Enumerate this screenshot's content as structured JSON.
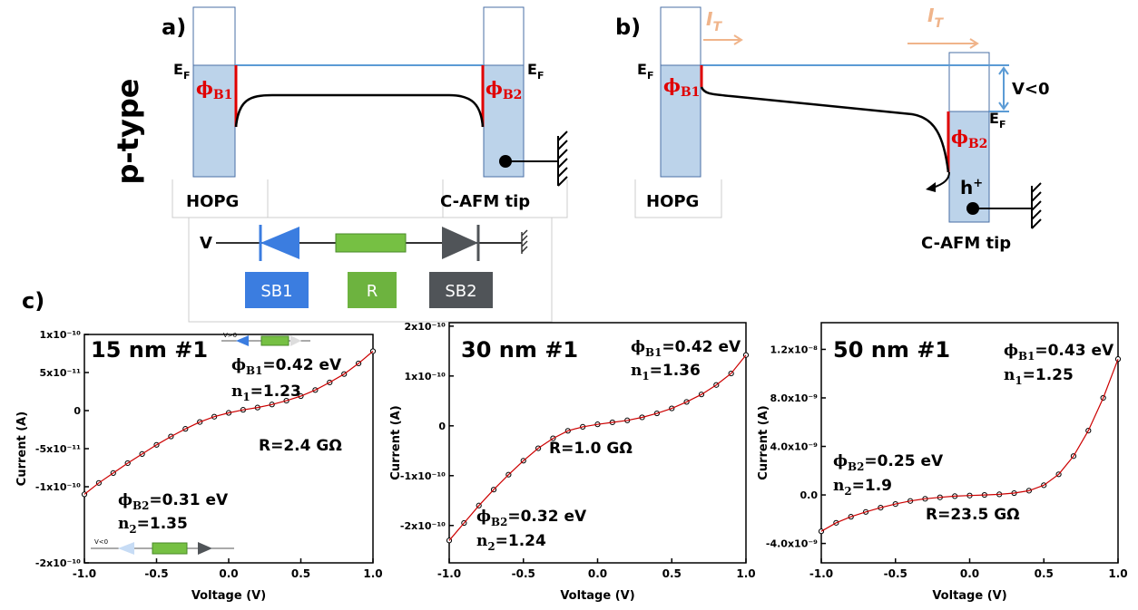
{
  "figure_side_label": "p-type",
  "diagram_a": {
    "label": "a)",
    "ef_left": {
      "main": "E",
      "sub": "F"
    },
    "ef_right": {
      "main": "E",
      "sub": "F"
    },
    "phi_left": {
      "main": "ϕ",
      "sub": "B1"
    },
    "phi_right": {
      "main": "ϕ",
      "sub": "B2"
    },
    "left_electrode": "HOPG",
    "right_electrode": "C-AFM tip"
  },
  "circuit": {
    "source": "V",
    "sb1": "SB1",
    "r": "R",
    "sb2": "SB2"
  },
  "diagram_b": {
    "label": "b)",
    "current_left": {
      "main": "I",
      "sub": "T"
    },
    "current_right": {
      "main": "I",
      "sub": "T"
    },
    "ef_left": {
      "main": "E",
      "sub": "F"
    },
    "ef_right": {
      "main": "E",
      "sub": "F"
    },
    "bias": "V<0",
    "phi_left": {
      "main": "ϕ",
      "sub": "B1"
    },
    "phi_right": {
      "main": "ϕ",
      "sub": "B2"
    },
    "carrier": {
      "main": "h",
      "sup": "+"
    },
    "left_electrode": "HOPG",
    "right_electrode": "C-AFM tip"
  },
  "panel_c_label": "c)",
  "chart_data": [
    {
      "type": "scatter",
      "title": "15 nm #1",
      "x_label": "Voltage (V)",
      "y_label": "Current (A)",
      "color": "#000000",
      "fit_color": "#cc0000",
      "x": [
        -1,
        -0.9,
        -0.8,
        -0.7,
        -0.6,
        -0.5,
        -0.4,
        -0.3,
        -0.2,
        -0.1,
        0,
        0.1,
        0.2,
        0.3,
        0.4,
        0.5,
        0.6,
        0.7,
        0.8,
        0.9,
        1
      ],
      "values": [
        -1.1e-10,
        -9.5e-11,
        -8.2e-11,
        -6.9e-11,
        -5.7e-11,
        -4.5e-11,
        -3.4e-11,
        -2.4e-11,
        -1.5e-11,
        -8e-12,
        -3e-12,
        1e-12,
        4e-12,
        8e-12,
        1.3e-11,
        1.9e-11,
        2.7e-11,
        3.7e-11,
        4.8e-11,
        6.2e-11,
        7.8e-11
      ],
      "xlim": [
        -1,
        1
      ],
      "xticks": [
        {
          "value": -1,
          "label": "-1.0"
        },
        -0.5,
        {
          "value": 0,
          "label": "0.0"
        },
        0.5,
        {
          "value": 1,
          "label": "1.0"
        }
      ],
      "ylim": [
        -2e-10,
        1e-10
      ],
      "yticks": [
        {
          "value": -2e-10,
          "label": "-2x10⁻¹⁰"
        },
        {
          "value": -1e-10,
          "label": "-1x10⁻¹⁰"
        },
        {
          "value": -5e-11,
          "label": "-5x10⁻¹¹"
        },
        0,
        {
          "value": 5e-11,
          "label": "5x10⁻¹¹"
        },
        {
          "value": 1e-10,
          "label": "1x10⁻¹⁰"
        }
      ],
      "annotations": [
        {
          "main": "ϕ",
          "sub": "B1",
          "rest": "=0.42 eV"
        },
        {
          "main": "n",
          "sub": "1",
          "rest": "=1.23"
        },
        {
          "main": "R=2.4 GΩ"
        },
        {
          "main": "ϕ",
          "sub": "B2",
          "rest": "=0.31 eV"
        },
        {
          "main": "n",
          "sub": "2",
          "rest": "=1.35"
        }
      ],
      "insets": [
        "V>0",
        "V<0"
      ]
    },
    {
      "type": "scatter",
      "title": "30 nm #1",
      "x_label": "Voltage (V)",
      "y_label": "Current (A)",
      "color": "#000000",
      "fit_color": "#cc0000",
      "x": [
        -1,
        -0.9,
        -0.8,
        -0.7,
        -0.6,
        -0.5,
        -0.4,
        -0.3,
        -0.2,
        -0.1,
        0,
        0.1,
        0.2,
        0.3,
        0.4,
        0.5,
        0.6,
        0.7,
        0.8,
        0.9,
        1
      ],
      "values": [
        -2.3e-10,
        -1.95e-10,
        -1.6e-10,
        -1.28e-10,
        -9.8e-11,
        -7e-11,
        -4.5e-11,
        -2.5e-11,
        -1e-11,
        -2e-12,
        3e-12,
        7e-12,
        1.1e-11,
        1.7e-11,
        2.5e-11,
        3.5e-11,
        4.8e-11,
        6.3e-11,
        8.2e-11,
        1.05e-10,
        1.42e-10
      ],
      "xlim": [
        -1,
        1
      ],
      "xticks": [
        {
          "value": -1,
          "label": "-1.0"
        },
        -0.5,
        {
          "value": 0,
          "label": "0.0"
        },
        0.5,
        {
          "value": 1,
          "label": "1.0"
        }
      ],
      "ylim": [
        -2.75e-10,
        2.07e-10
      ],
      "yticks": [
        {
          "value": -2e-10,
          "label": "-2x10⁻¹⁰"
        },
        {
          "value": -1e-10,
          "label": "-1x10⁻¹⁰"
        },
        0,
        {
          "value": 1e-10,
          "label": "1x10⁻¹⁰"
        },
        {
          "value": 2e-10,
          "label": "2x10⁻¹⁰"
        }
      ],
      "annotations": [
        {
          "main": "ϕ",
          "sub": "B1",
          "rest": "=0.42 eV"
        },
        {
          "main": "n",
          "sub": "1",
          "rest": "=1.36"
        },
        {
          "main": "R=1.0 GΩ"
        },
        {
          "main": "ϕ",
          "sub": "B2",
          "rest": "=0.32 eV"
        },
        {
          "main": "n",
          "sub": "2",
          "rest": "=1.24"
        }
      ]
    },
    {
      "type": "scatter",
      "title": "50 nm #1",
      "x_label": "Voltage (V)",
      "y_label": "Current (A)",
      "color": "#000000",
      "fit_color": "#cc0000",
      "x": [
        -1,
        -0.9,
        -0.8,
        -0.7,
        -0.6,
        -0.5,
        -0.4,
        -0.3,
        -0.2,
        -0.1,
        0,
        0.1,
        0.2,
        0.3,
        0.4,
        0.5,
        0.6,
        0.7,
        0.8,
        0.9,
        1
      ],
      "values": [
        -3e-09,
        -2.3e-09,
        -1.8e-09,
        -1.4e-09,
        -1.05e-09,
        -7.5e-10,
        -5e-10,
        -3.2e-10,
        -2e-10,
        -1e-10,
        -5e-11,
        0,
        5e-11,
        1.5e-10,
        3.5e-10,
        8e-10,
        1.7e-09,
        3.2e-09,
        5.3e-09,
        8e-09,
        1.12e-08
      ],
      "xlim": [
        -1,
        1
      ],
      "xticks": [
        {
          "value": -1,
          "label": "-1.0"
        },
        -0.5,
        {
          "value": 0,
          "label": "0.0"
        },
        0.5,
        {
          "value": 1,
          "label": "1.0"
        }
      ],
      "ylim": [
        -5.6e-09,
        1.42e-08
      ],
      "yticks": [
        {
          "value": -4e-09,
          "label": "-4.0x10⁻⁹"
        },
        {
          "value": 0,
          "label": "0.0"
        },
        {
          "value": 4e-09,
          "label": "4.0x10⁻⁹"
        },
        {
          "value": 8e-09,
          "label": "8.0x10⁻⁹"
        },
        {
          "value": 1.2e-08,
          "label": "1.2x10⁻⁸"
        }
      ],
      "annotations": [
        {
          "main": "ϕ",
          "sub": "B1",
          "rest": "=0.43 eV"
        },
        {
          "main": "n",
          "sub": "1",
          "rest": "=1.25"
        },
        {
          "main": "R=23.5 GΩ"
        },
        {
          "main": "ϕ",
          "sub": "B2",
          "rest": "=0.25 eV"
        },
        {
          "main": "n",
          "sub": "2",
          "rest": "=1.9"
        }
      ]
    }
  ]
}
